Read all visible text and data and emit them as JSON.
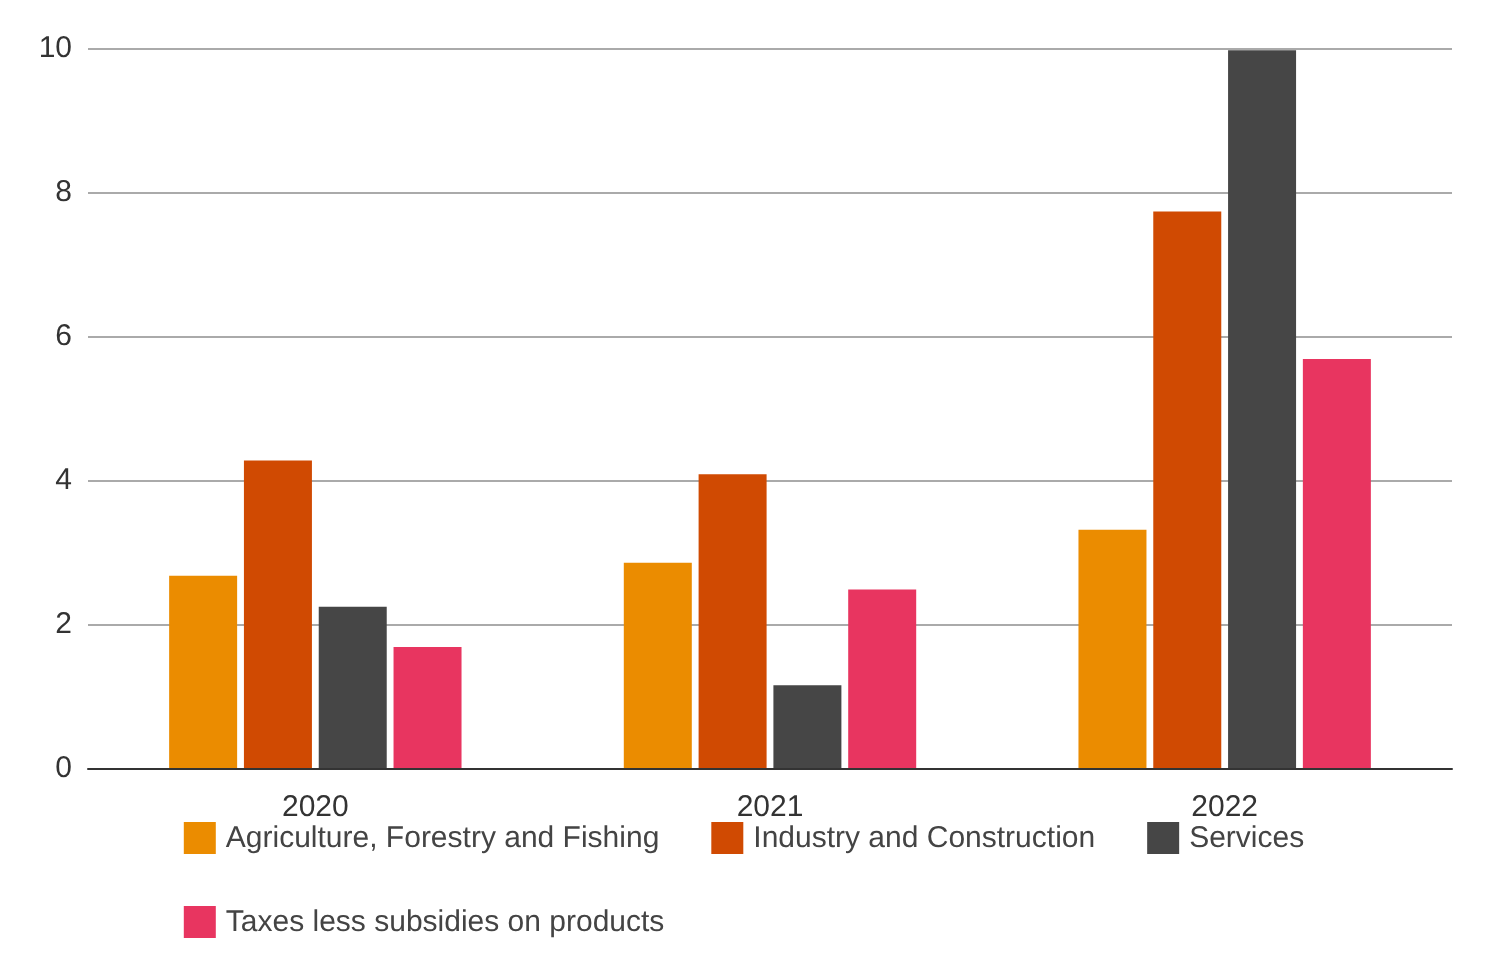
{
  "chart_data": {
    "type": "bar",
    "categories": [
      "2020",
      "2021",
      "2022"
    ],
    "series": [
      {
        "name": "Agriculture, Forestry and Fishing",
        "color": "#eb8c00",
        "values": [
          2.67,
          2.85,
          3.31
        ]
      },
      {
        "name": "Industry and Construction",
        "color": "#d04a02",
        "values": [
          4.27,
          4.08,
          7.73
        ]
      },
      {
        "name": "Services",
        "color": "#464646",
        "values": [
          2.24,
          1.15,
          9.97
        ]
      },
      {
        "name": "Taxes less subsidies on products",
        "color": "#e83560",
        "values": [
          1.68,
          2.48,
          5.68
        ]
      }
    ],
    "ylim": [
      0,
      10
    ],
    "yticks": [
      0,
      2,
      4,
      6,
      8,
      10
    ],
    "grid": "y",
    "legend": "bottom"
  }
}
